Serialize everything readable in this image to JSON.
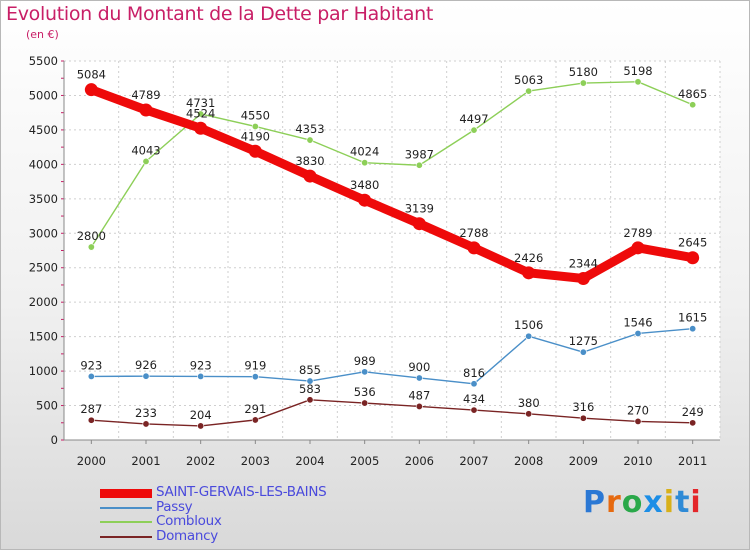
{
  "header": {
    "title": "Evolution du Montant de la Dette par Habitant",
    "subtitle": "(en €)"
  },
  "colors": {
    "accent": "#c81e66",
    "legend_text": "#4a4adc"
  },
  "logo": {
    "text": "Proxiti",
    "letter_colors": [
      "#2b78d4",
      "#e66a10",
      "#2aa84a",
      "#1c8ee6",
      "#d8b019",
      "#2e8ad6",
      "#e3262a"
    ]
  },
  "chart_data": {
    "type": "line",
    "title": "Evolution du Montant de la Dette par Habitant",
    "ylabel": "(en €)",
    "xlabel": "",
    "x": [
      "2000",
      "2001",
      "2002",
      "2003",
      "2004",
      "2005",
      "2006",
      "2007",
      "2008",
      "2009",
      "2010",
      "2011"
    ],
    "ylim": [
      0,
      5500
    ],
    "yticks": [
      0,
      500,
      1000,
      1500,
      2000,
      2500,
      3000,
      3500,
      4000,
      4500,
      5000,
      5500
    ],
    "grid": true,
    "legend_position": "bottom-left",
    "series": [
      {
        "name": "SAINT-GERVAIS-LES-BAINS",
        "color": "#ee0a0a",
        "values": [
          5084,
          4789,
          4524,
          4190,
          3830,
          3480,
          3139,
          2788,
          2426,
          2344,
          2789,
          2645
        ]
      },
      {
        "name": "Passy",
        "color": "#4a8fc8",
        "values": [
          923,
          926,
          923,
          919,
          855,
          989,
          900,
          816,
          1506,
          1275,
          1546,
          1615
        ]
      },
      {
        "name": "Combloux",
        "color": "#8dcf58",
        "values": [
          2800,
          4043,
          4731,
          4550,
          4353,
          4024,
          3987,
          4497,
          5063,
          5180,
          5198,
          4865
        ]
      },
      {
        "name": "Domancy",
        "color": "#7a2424",
        "values": [
          287,
          233,
          204,
          291,
          583,
          536,
          487,
          434,
          380,
          316,
          270,
          249
        ]
      }
    ]
  }
}
